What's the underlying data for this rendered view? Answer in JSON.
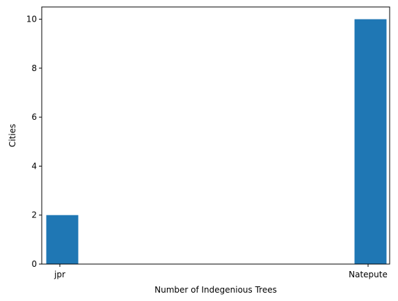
{
  "chart_data": {
    "type": "bar",
    "title": "",
    "xlabel": "Number of Indegenious Trees",
    "ylabel": "Cities",
    "categories": [
      "jpr",
      "Natepute"
    ],
    "values": [
      2,
      10
    ],
    "ylim": [
      0,
      10.5
    ],
    "yticks": [
      0,
      2,
      4,
      6,
      8,
      10
    ],
    "grid": false,
    "bar_color": "#1f77b4"
  }
}
